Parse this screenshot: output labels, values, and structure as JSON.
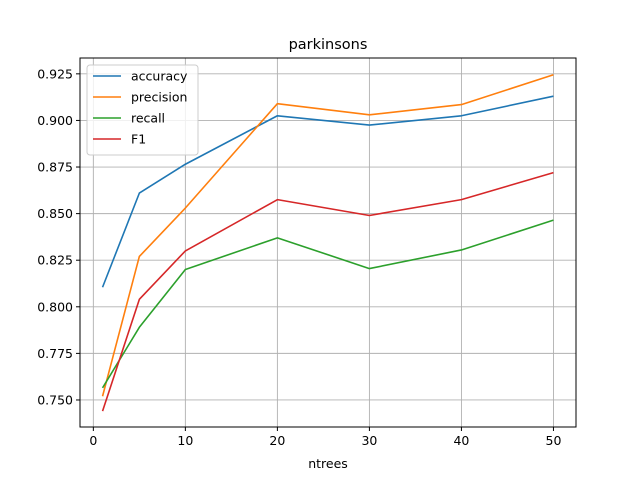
{
  "chart_data": {
    "type": "line",
    "title": "parkinsons",
    "xlabel": "ntrees",
    "ylabel": "",
    "x": [
      1,
      5,
      10,
      20,
      30,
      40,
      50
    ],
    "xlim": [
      -1.45,
      52.45
    ],
    "ylim": [
      0.7355,
      0.9335
    ],
    "xticks": [
      0,
      10,
      20,
      30,
      40,
      50
    ],
    "xtick_labels": [
      "0",
      "10",
      "20",
      "30",
      "40",
      "50"
    ],
    "yticks": [
      0.75,
      0.775,
      0.8,
      0.825,
      0.85,
      0.875,
      0.9,
      0.925
    ],
    "ytick_labels": [
      "0.750",
      "0.775",
      "0.800",
      "0.825",
      "0.850",
      "0.875",
      "0.900",
      "0.925"
    ],
    "grid": true,
    "legend_position": "top-left",
    "series": [
      {
        "name": "accuracy",
        "color": "#1f77b4",
        "values": [
          0.8105,
          0.861,
          0.8765,
          0.9025,
          0.8975,
          0.9025,
          0.913
        ]
      },
      {
        "name": "precision",
        "color": "#ff7f0e",
        "values": [
          0.752,
          0.827,
          0.853,
          0.909,
          0.903,
          0.9085,
          0.9245
        ]
      },
      {
        "name": "recall",
        "color": "#2ca02c",
        "values": [
          0.7565,
          0.789,
          0.82,
          0.837,
          0.8205,
          0.8305,
          0.8465
        ]
      },
      {
        "name": "F1",
        "color": "#d62728",
        "values": [
          0.744,
          0.804,
          0.83,
          0.8575,
          0.849,
          0.8575,
          0.872
        ]
      }
    ]
  }
}
